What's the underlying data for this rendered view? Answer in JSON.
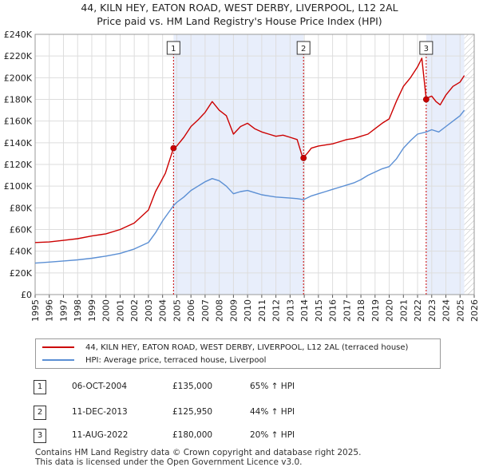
{
  "title_line1": "44, KILN HEY, EATON ROAD, WEST DERBY, LIVERPOOL, L12 2AL",
  "title_line2": "Price paid vs. HM Land Registry's House Price Index (HPI)",
  "chart_data": {
    "type": "line",
    "title": "44, KILN HEY, EATON ROAD, WEST DERBY, LIVERPOOL, L12 2AL — Price paid vs. HM Land Registry's House Price Index (HPI)",
    "xlim": [
      1995,
      2026
    ],
    "ylim": [
      0,
      240000
    ],
    "x_ticks": [
      "1995",
      "1996",
      "1997",
      "1998",
      "1999",
      "2000",
      "2001",
      "2002",
      "2003",
      "2004",
      "2005",
      "2006",
      "2007",
      "2008",
      "2009",
      "2010",
      "2011",
      "2012",
      "2013",
      "2014",
      "2015",
      "2016",
      "2017",
      "2018",
      "2019",
      "2020",
      "2021",
      "2022",
      "2023",
      "2024",
      "2025",
      "2026"
    ],
    "y_ticks": [
      {
        "value": 0,
        "label": "£0"
      },
      {
        "value": 20000,
        "label": "£20K"
      },
      {
        "value": 40000,
        "label": "£40K"
      },
      {
        "value": 60000,
        "label": "£60K"
      },
      {
        "value": 80000,
        "label": "£80K"
      },
      {
        "value": 100000,
        "label": "£100K"
      },
      {
        "value": 120000,
        "label": "£120K"
      },
      {
        "value": 140000,
        "label": "£140K"
      },
      {
        "value": 160000,
        "label": "£160K"
      },
      {
        "value": 180000,
        "label": "£180K"
      },
      {
        "value": 200000,
        "label": "£200K"
      },
      {
        "value": 220000,
        "label": "£220K"
      },
      {
        "value": 240000,
        "label": "£240K"
      }
    ],
    "series": [
      {
        "name": "44, KILN HEY, EATON ROAD, WEST DERBY, LIVERPOOL, L12 2AL (terraced house)",
        "color": "#cc0000",
        "points": [
          [
            1995,
            48000
          ],
          [
            1996,
            48500
          ],
          [
            1997,
            50000
          ],
          [
            1998,
            51500
          ],
          [
            1999,
            54000
          ],
          [
            2000,
            56000
          ],
          [
            2001,
            60000
          ],
          [
            2002,
            66000
          ],
          [
            2003,
            78000
          ],
          [
            2003.5,
            95000
          ],
          [
            2004.2,
            112000
          ],
          [
            2004.77,
            135000
          ],
          [
            2005,
            137000
          ],
          [
            2005.5,
            145000
          ],
          [
            2006,
            155000
          ],
          [
            2006.5,
            161000
          ],
          [
            2007,
            168000
          ],
          [
            2007.5,
            178000
          ],
          [
            2008,
            170000
          ],
          [
            2008.5,
            165000
          ],
          [
            2009,
            148000
          ],
          [
            2009.5,
            155000
          ],
          [
            2010,
            158000
          ],
          [
            2010.5,
            153000
          ],
          [
            2011,
            150000
          ],
          [
            2011.5,
            148000
          ],
          [
            2012,
            146000
          ],
          [
            2012.5,
            147000
          ],
          [
            2013,
            145000
          ],
          [
            2013.5,
            143000
          ],
          [
            2013.9,
            125950
          ],
          [
            2014.2,
            130000
          ],
          [
            2014.5,
            135000
          ],
          [
            2015,
            137000
          ],
          [
            2015.5,
            138000
          ],
          [
            2016,
            139000
          ],
          [
            2016.5,
            141000
          ],
          [
            2017,
            143000
          ],
          [
            2017.5,
            144000
          ],
          [
            2018,
            146000
          ],
          [
            2018.5,
            148000
          ],
          [
            2019,
            153000
          ],
          [
            2019.5,
            158000
          ],
          [
            2020,
            162000
          ],
          [
            2020.5,
            178000
          ],
          [
            2021,
            192000
          ],
          [
            2021.5,
            200000
          ],
          [
            2022,
            210000
          ],
          [
            2022.3,
            218000
          ],
          [
            2022.61,
            180000
          ],
          [
            2022.8,
            182000
          ],
          [
            2023,
            183000
          ],
          [
            2023.3,
            178000
          ],
          [
            2023.6,
            175000
          ],
          [
            2024,
            184000
          ],
          [
            2024.5,
            192000
          ],
          [
            2025,
            196000
          ],
          [
            2025.3,
            202000
          ]
        ]
      },
      {
        "name": "HPI: Average price, terraced house, Liverpool",
        "color": "#5b8fd4",
        "points": [
          [
            1995,
            29000
          ],
          [
            1996,
            30000
          ],
          [
            1997,
            31000
          ],
          [
            1998,
            32000
          ],
          [
            1999,
            33500
          ],
          [
            2000,
            35500
          ],
          [
            2001,
            38000
          ],
          [
            2002,
            42000
          ],
          [
            2003,
            48000
          ],
          [
            2003.5,
            57000
          ],
          [
            2004,
            68000
          ],
          [
            2004.77,
            82000
          ],
          [
            2005,
            85000
          ],
          [
            2005.5,
            90000
          ],
          [
            2006,
            96000
          ],
          [
            2006.5,
            100000
          ],
          [
            2007,
            104000
          ],
          [
            2007.5,
            107000
          ],
          [
            2008,
            105000
          ],
          [
            2008.5,
            100000
          ],
          [
            2009,
            93000
          ],
          [
            2009.5,
            95000
          ],
          [
            2010,
            96000
          ],
          [
            2010.5,
            94000
          ],
          [
            2011,
            92000
          ],
          [
            2011.5,
            91000
          ],
          [
            2012,
            90000
          ],
          [
            2012.5,
            89500
          ],
          [
            2013,
            89000
          ],
          [
            2013.5,
            88500
          ],
          [
            2013.95,
            87500
          ],
          [
            2014.5,
            91000
          ],
          [
            2015,
            93000
          ],
          [
            2015.5,
            95000
          ],
          [
            2016,
            97000
          ],
          [
            2016.5,
            99000
          ],
          [
            2017,
            101000
          ],
          [
            2017.5,
            103000
          ],
          [
            2018,
            106000
          ],
          [
            2018.5,
            110000
          ],
          [
            2019,
            113000
          ],
          [
            2019.5,
            116000
          ],
          [
            2020,
            118000
          ],
          [
            2020.5,
            125000
          ],
          [
            2021,
            135000
          ],
          [
            2021.5,
            142000
          ],
          [
            2022,
            148000
          ],
          [
            2022.61,
            150000
          ],
          [
            2023,
            152000
          ],
          [
            2023.5,
            150000
          ],
          [
            2024,
            155000
          ],
          [
            2024.5,
            160000
          ],
          [
            2025,
            165000
          ],
          [
            2025.3,
            170000
          ]
        ]
      }
    ],
    "sales": [
      {
        "label": "1",
        "x": 2004.77,
        "y": 135000
      },
      {
        "label": "2",
        "x": 2013.95,
        "y": 125950
      },
      {
        "label": "3",
        "x": 2022.61,
        "y": 180000
      }
    ],
    "shaded_ranges": [
      [
        2004.77,
        2013.95
      ],
      [
        2022.61,
        2025.3
      ]
    ],
    "hatched_range": [
      2025.3,
      2026
    ]
  },
  "legend": {
    "property": "44, KILN HEY, EATON ROAD, WEST DERBY, LIVERPOOL, L12 2AL (terraced house)",
    "hpi": "HPI: Average price, terraced house, Liverpool",
    "property_color": "#cc0000",
    "hpi_color": "#5b8fd4"
  },
  "transactions": [
    {
      "num": "1",
      "date": "06-OCT-2004",
      "price": "£135,000",
      "hpi": "65% ↑ HPI"
    },
    {
      "num": "2",
      "date": "11-DEC-2013",
      "price": "£125,950",
      "hpi": "44% ↑ HPI"
    },
    {
      "num": "3",
      "date": "11-AUG-2022",
      "price": "£180,000",
      "hpi": "20% ↑ HPI"
    }
  ],
  "footer_line1": "Contains HM Land Registry data © Crown copyright and database right 2025.",
  "footer_line2": "This data is licensed under the Open Government Licence v3.0."
}
